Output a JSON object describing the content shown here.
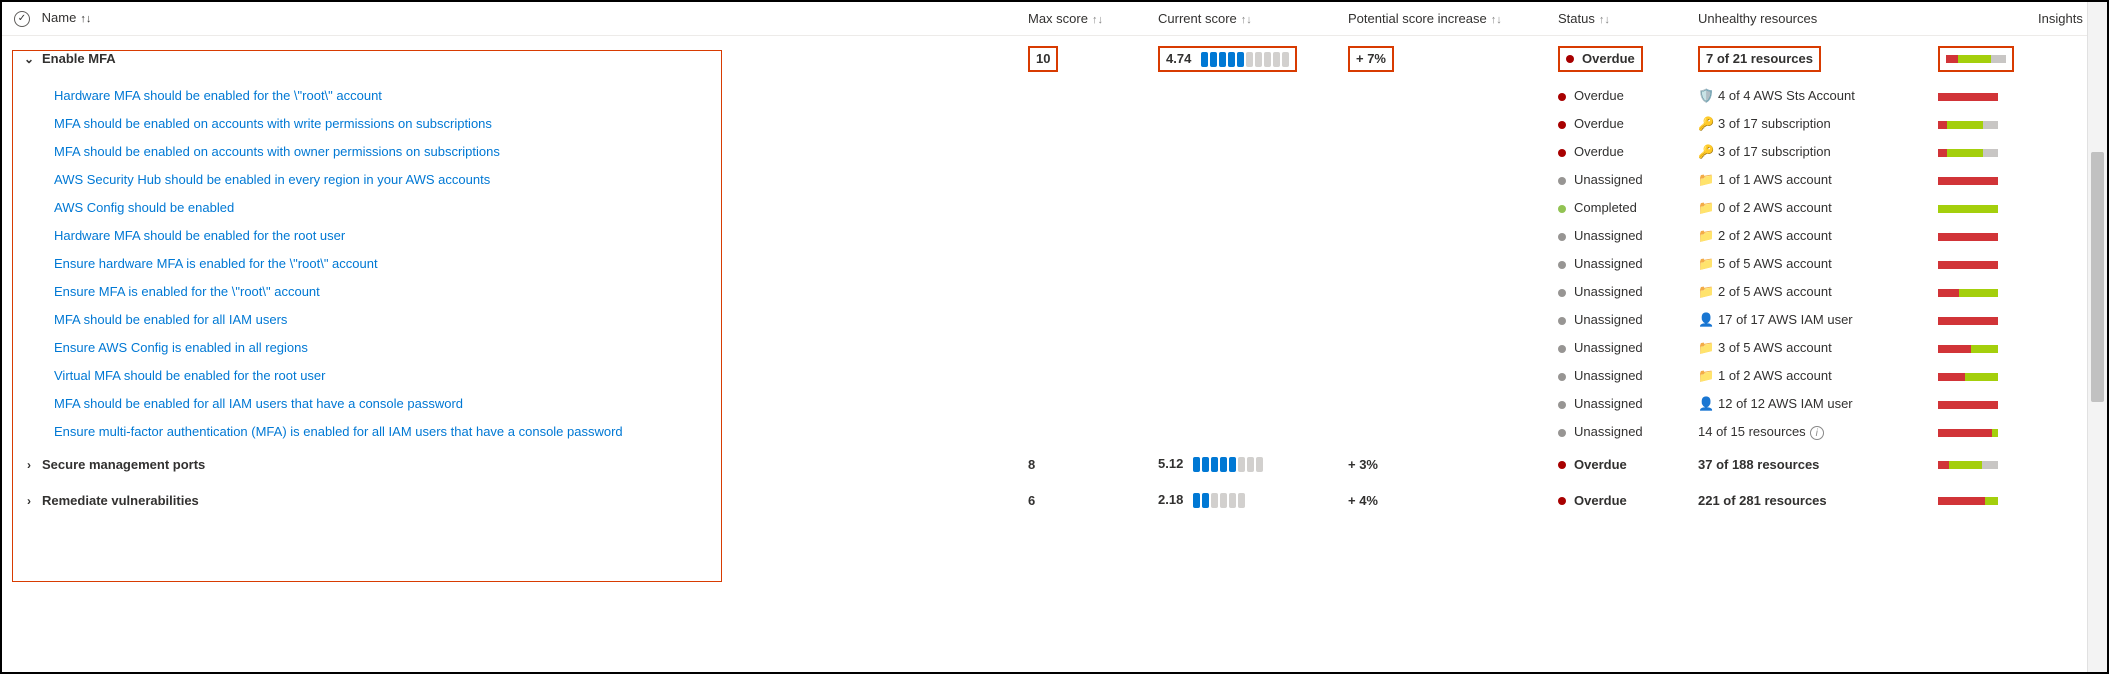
{
  "colors": {
    "link": "#0078d4",
    "overdue": "#a80000",
    "unassigned": "#979593",
    "completed": "#92c353",
    "seg_on": "#0078d4",
    "seg_off": "#d2d0ce",
    "bar_red": "#d13438",
    "bar_green": "#a4cf0c",
    "bar_grey": "#c8c6c4",
    "highlight": "#d83b01"
  },
  "header": {
    "name": "Name",
    "max": "Max score",
    "current": "Current score",
    "potential": "Potential score increase",
    "status": "Status",
    "unhealthy": "Unhealthy resources",
    "insights": "Insights"
  },
  "groups": [
    {
      "expanded": true,
      "highlight": true,
      "name": "Enable MFA",
      "max": "10",
      "current_val": "4.74",
      "segs_on": 5,
      "segs_total": 10,
      "potential": "+ 7%",
      "status": "Overdue",
      "status_color": "#a80000",
      "resources": "7 of 21 resources",
      "bar": [
        [
          "#d13438",
          20
        ],
        [
          "#a4cf0c",
          55
        ],
        [
          "#c8c6c4",
          25
        ]
      ],
      "items": [
        {
          "name": "Hardware MFA should be enabled for the \\\"root\\\" account",
          "status": "Overdue",
          "status_color": "#a80000",
          "icon": "🛡️",
          "res": "4 of 4 AWS Sts Account",
          "bar": [
            [
              "#d13438",
              100
            ]
          ]
        },
        {
          "name": "MFA should be enabled on accounts with write permissions on subscriptions",
          "status": "Overdue",
          "status_color": "#a80000",
          "icon": "🔑",
          "res": "3 of 17 subscription",
          "bar": [
            [
              "#d13438",
              15
            ],
            [
              "#a4cf0c",
              60
            ],
            [
              "#c8c6c4",
              25
            ]
          ]
        },
        {
          "name": "MFA should be enabled on accounts with owner permissions on subscriptions",
          "status": "Overdue",
          "status_color": "#a80000",
          "icon": "🔑",
          "res": "3 of 17 subscription",
          "bar": [
            [
              "#d13438",
              15
            ],
            [
              "#a4cf0c",
              60
            ],
            [
              "#c8c6c4",
              25
            ]
          ]
        },
        {
          "name": "AWS Security Hub should be enabled in every region in your AWS accounts",
          "status": "Unassigned",
          "status_color": "#979593",
          "icon": "📁",
          "res": "1 of 1 AWS account",
          "bar": [
            [
              "#d13438",
              100
            ]
          ]
        },
        {
          "name": "AWS Config should be enabled",
          "status": "Completed",
          "status_color": "#92c353",
          "icon": "📁",
          "res": "0 of 2 AWS account",
          "bar": [
            [
              "#a4cf0c",
              100
            ]
          ]
        },
        {
          "name": "Hardware MFA should be enabled for the root user",
          "status": "Unassigned",
          "status_color": "#979593",
          "icon": "📁",
          "res": "2 of 2 AWS account",
          "bar": [
            [
              "#d13438",
              100
            ]
          ]
        },
        {
          "name": "Ensure hardware MFA is enabled for the \\\"root\\\" account",
          "status": "Unassigned",
          "status_color": "#979593",
          "icon": "📁",
          "res": "5 of 5 AWS account",
          "bar": [
            [
              "#d13438",
              100
            ]
          ]
        },
        {
          "name": "Ensure MFA is enabled for the \\\"root\\\" account",
          "status": "Unassigned",
          "status_color": "#979593",
          "icon": "📁",
          "res": "2 of 5 AWS account",
          "bar": [
            [
              "#d13438",
              35
            ],
            [
              "#a4cf0c",
              65
            ]
          ]
        },
        {
          "name": "MFA should be enabled for all IAM users",
          "status": "Unassigned",
          "status_color": "#979593",
          "icon": "👤",
          "res": "17 of 17 AWS IAM user",
          "bar": [
            [
              "#d13438",
              100
            ]
          ]
        },
        {
          "name": "Ensure AWS Config is enabled in all regions",
          "status": "Unassigned",
          "status_color": "#979593",
          "icon": "📁",
          "res": "3 of 5 AWS account",
          "bar": [
            [
              "#d13438",
              55
            ],
            [
              "#a4cf0c",
              45
            ]
          ]
        },
        {
          "name": "Virtual MFA should be enabled for the root user",
          "status": "Unassigned",
          "status_color": "#979593",
          "icon": "📁",
          "res": "1 of 2 AWS account",
          "bar": [
            [
              "#d13438",
              45
            ],
            [
              "#a4cf0c",
              55
            ]
          ]
        },
        {
          "name": "MFA should be enabled for all IAM users that have a console password",
          "status": "Unassigned",
          "status_color": "#979593",
          "icon": "👤",
          "res": "12 of 12 AWS IAM user",
          "bar": [
            [
              "#d13438",
              100
            ]
          ]
        },
        {
          "name": "Ensure multi-factor authentication (MFA) is enabled for all IAM users that have a console password",
          "status": "Unassigned",
          "status_color": "#979593",
          "icon": "",
          "res": "14 of 15 resources",
          "info": true,
          "bar": [
            [
              "#d13438",
              90
            ],
            [
              "#a4cf0c",
              10
            ]
          ]
        }
      ]
    },
    {
      "expanded": false,
      "name": "Secure management ports",
      "max": "8",
      "current_val": "5.12",
      "segs_on": 5,
      "segs_total": 8,
      "potential": "+ 3%",
      "status": "Overdue",
      "status_color": "#a80000",
      "resources": "37 of 188 resources",
      "bar": [
        [
          "#d13438",
          18
        ],
        [
          "#a4cf0c",
          55
        ],
        [
          "#c8c6c4",
          27
        ]
      ],
      "items": []
    },
    {
      "expanded": false,
      "name": "Remediate vulnerabilities",
      "max": "6",
      "current_val": "2.18",
      "segs_on": 2,
      "segs_total": 6,
      "potential": "+ 4%",
      "status": "Overdue",
      "status_color": "#a80000",
      "resources": "221 of 281 resources",
      "bar": [
        [
          "#d13438",
          78
        ],
        [
          "#a4cf0c",
          22
        ]
      ],
      "items": []
    }
  ]
}
